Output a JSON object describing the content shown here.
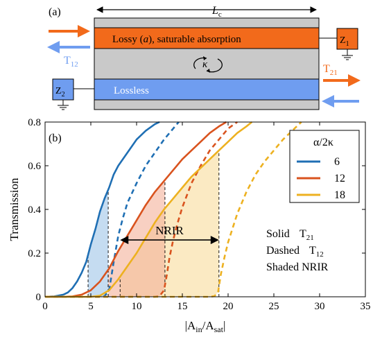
{
  "colors": {
    "orange_layer": "#f26a1b",
    "blue_layer": "#6f9df0",
    "gray_layer": "#c9c9c9",
    "arrow_orange": "#f26a1b",
    "arrow_blue": "#6f9df0",
    "port_box": "#6f9df0",
    "series_6": "#1f6fb4",
    "series_12": "#d9531e",
    "series_18": "#edb120",
    "shade_6": "#9ec5e8",
    "shade_12": "#f4b09a",
    "shade_18": "#f8dc9b",
    "shade_overlap": "#e8b07a"
  },
  "panel_a": {
    "label": "(a)",
    "length_label_main": "L",
    "length_label_sub": "c",
    "top_layer_text_before": "Lossy (",
    "top_layer_text_var": "a",
    "top_layer_text_after": "), saturable absorption",
    "coupling_label": "κ",
    "bottom_layer_text": "Lossless",
    "port_left": "Z",
    "port_left_sub": "2",
    "port_right": "Z",
    "port_right_sub": "1",
    "t12_main": "T",
    "t12_sub": "12",
    "t21_main": "T",
    "t21_sub": "21"
  },
  "panel_b": {
    "label": "(b)",
    "ylabel": "Transmission",
    "xlabel_prefix": "|A",
    "xlabel_in": "in",
    "xlabel_slash": "/A",
    "xlabel_sat": "sat",
    "xlabel_suffix": "|",
    "legend_title": "α/2κ",
    "nrir_label": "NRIR",
    "note_solid": "Solid",
    "note_solid_val": "T",
    "note_solid_sub": "21",
    "note_dashed": "Dashed",
    "note_dashed_val": "T",
    "note_dashed_sub": "12",
    "note_shaded": "Shaded NRIR"
  },
  "chart_data": {
    "type": "line",
    "xlim": [
      0,
      35
    ],
    "ylim": [
      0,
      0.8
    ],
    "x_ticks": [
      0,
      5,
      10,
      15,
      20,
      25,
      30,
      35
    ],
    "y_ticks": [
      0,
      0.2,
      0.4,
      0.6,
      0.8
    ],
    "x_tick_labels": [
      "0",
      "5",
      "10",
      "15",
      "20",
      "25",
      "30",
      "35"
    ],
    "y_tick_labels": [
      "0",
      "0.2",
      "0.4",
      "0.6",
      "0.8"
    ],
    "series": [
      {
        "name": "6",
        "color": "#1f6fb4",
        "solid": [
          [
            0,
            0
          ],
          [
            1,
            0.002
          ],
          [
            2,
            0.01
          ],
          [
            2.5,
            0.02
          ],
          [
            3,
            0.04
          ],
          [
            3.5,
            0.07
          ],
          [
            4,
            0.11
          ],
          [
            4.5,
            0.16
          ],
          [
            5,
            0.24
          ],
          [
            5.5,
            0.31
          ],
          [
            6,
            0.39
          ],
          [
            6.5,
            0.45
          ],
          [
            7,
            0.5
          ],
          [
            7.5,
            0.56
          ],
          [
            8,
            0.6
          ],
          [
            9,
            0.66
          ],
          [
            10,
            0.72
          ],
          [
            11,
            0.76
          ],
          [
            12,
            0.79
          ],
          [
            12.5,
            0.8
          ]
        ],
        "dashed": [
          [
            0,
            0
          ],
          [
            6,
            0
          ],
          [
            6.5,
            0.003
          ],
          [
            7,
            0.03
          ],
          [
            7.5,
            0.16
          ],
          [
            8,
            0.28
          ],
          [
            8.5,
            0.36
          ],
          [
            9,
            0.43
          ],
          [
            10,
            0.52
          ],
          [
            11,
            0.6
          ],
          [
            12,
            0.66
          ],
          [
            13,
            0.72
          ],
          [
            14,
            0.77
          ],
          [
            14.6,
            0.8
          ]
        ],
        "nrir": [
          4.7,
          6.9
        ]
      },
      {
        "name": "12",
        "color": "#d9531e",
        "solid": [
          [
            0,
            0
          ],
          [
            2,
            0
          ],
          [
            3,
            0.002
          ],
          [
            4,
            0.01
          ],
          [
            5,
            0.03
          ],
          [
            6,
            0.07
          ],
          [
            7,
            0.13
          ],
          [
            8,
            0.21
          ],
          [
            9,
            0.28
          ],
          [
            10,
            0.35
          ],
          [
            11,
            0.42
          ],
          [
            12,
            0.48
          ],
          [
            13,
            0.53
          ],
          [
            14,
            0.58
          ],
          [
            15,
            0.63
          ],
          [
            16,
            0.67
          ],
          [
            17,
            0.71
          ],
          [
            18,
            0.75
          ],
          [
            19,
            0.78
          ],
          [
            19.8,
            0.8
          ]
        ],
        "dashed": [
          [
            0,
            0
          ],
          [
            12,
            0
          ],
          [
            12.5,
            0.003
          ],
          [
            13,
            0.03
          ],
          [
            13.3,
            0.1
          ],
          [
            13.6,
            0.18
          ],
          [
            14,
            0.26
          ],
          [
            14.5,
            0.34
          ],
          [
            15,
            0.41
          ],
          [
            16,
            0.52
          ],
          [
            17,
            0.6
          ],
          [
            18,
            0.67
          ],
          [
            19,
            0.72
          ],
          [
            20,
            0.77
          ],
          [
            21,
            0.8
          ]
        ],
        "nrir": [
          6.9,
          13.1
        ]
      },
      {
        "name": "18",
        "color": "#edb120",
        "solid": [
          [
            0,
            0
          ],
          [
            5,
            0
          ],
          [
            6,
            0.005
          ],
          [
            7,
            0.03
          ],
          [
            8,
            0.08
          ],
          [
            9,
            0.14
          ],
          [
            10,
            0.2
          ],
          [
            11,
            0.27
          ],
          [
            12,
            0.34
          ],
          [
            13,
            0.4
          ],
          [
            14,
            0.45
          ],
          [
            15,
            0.5
          ],
          [
            16,
            0.55
          ],
          [
            17,
            0.59
          ],
          [
            18,
            0.63
          ],
          [
            19,
            0.67
          ],
          [
            20,
            0.71
          ],
          [
            21,
            0.75
          ],
          [
            22,
            0.78
          ],
          [
            22.6,
            0.8
          ]
        ],
        "dashed": [
          [
            0,
            0
          ],
          [
            18,
            0
          ],
          [
            18.5,
            0.003
          ],
          [
            18.9,
            0.02
          ],
          [
            19.2,
            0.1
          ],
          [
            19.6,
            0.18
          ],
          [
            20,
            0.25
          ],
          [
            21,
            0.38
          ],
          [
            22,
            0.48
          ],
          [
            23,
            0.56
          ],
          [
            24,
            0.62
          ],
          [
            25,
            0.67
          ],
          [
            26,
            0.72
          ],
          [
            27,
            0.76
          ],
          [
            28,
            0.8
          ]
        ],
        "nrir": [
          8.2,
          19
        ]
      }
    ],
    "annotation": {
      "text": "NRIR",
      "x_from": 8.2,
      "x_to": 19.0,
      "y": 0.26
    }
  }
}
